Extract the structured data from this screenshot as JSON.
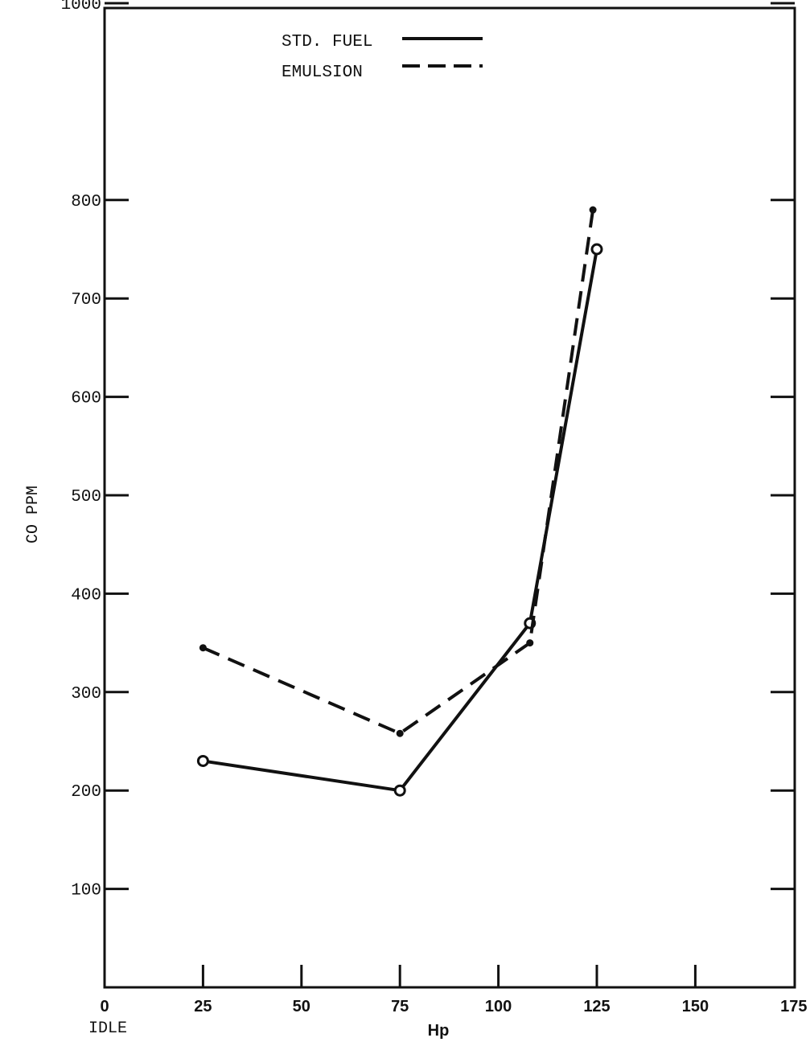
{
  "chart_data": {
    "type": "line",
    "xlabel": "Hp",
    "ylabel": "CO PPM",
    "x_extra_label": "IDLE",
    "xlim": [
      0,
      175
    ],
    "ylim": [
      0,
      1100
    ],
    "xticks": [
      0,
      25,
      50,
      75,
      100,
      125,
      150,
      175
    ],
    "yticks": [
      100,
      200,
      300,
      400,
      500,
      600,
      700,
      800,
      1000
    ],
    "grid": false,
    "legend_position": "top-center",
    "series": [
      {
        "name": "STD. FUEL",
        "style": "solid",
        "marker": "open-circle",
        "color": "#111111",
        "x": [
          25,
          75,
          108,
          125
        ],
        "y": [
          230,
          200,
          370,
          750
        ]
      },
      {
        "name": "EMULSION",
        "style": "dashed",
        "marker": "filled-dot",
        "color": "#111111",
        "x": [
          25,
          75,
          108,
          124
        ],
        "y": [
          345,
          258,
          350,
          790
        ]
      }
    ]
  }
}
